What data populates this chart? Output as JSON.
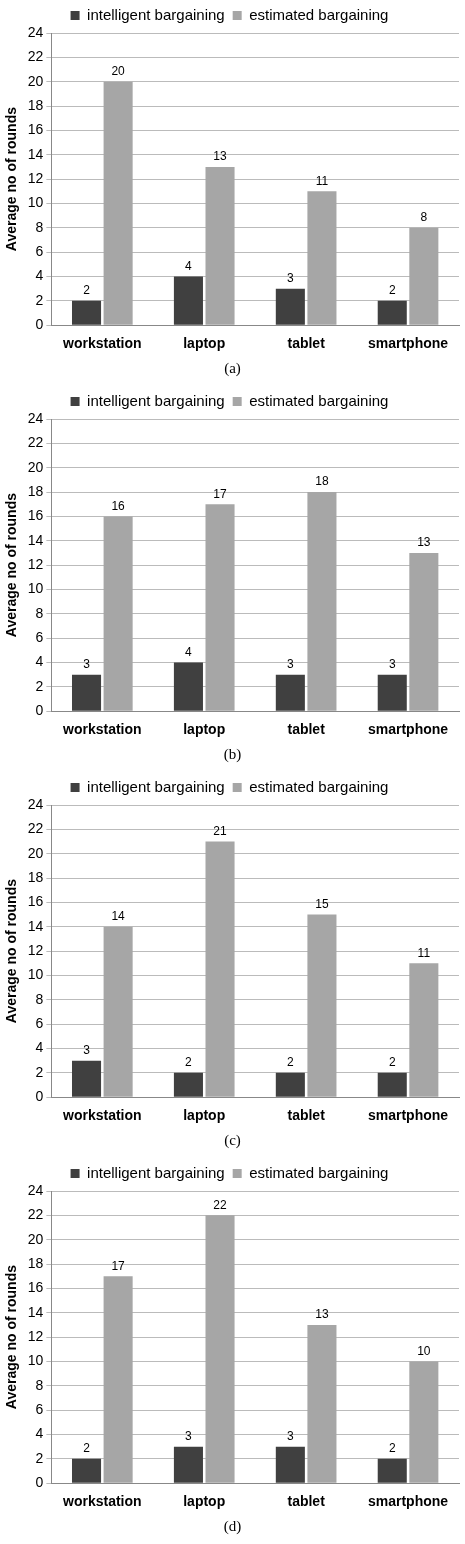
{
  "chart_data": [
    {
      "type": "bar",
      "ylabel": "Average no of rounds",
      "categories": [
        "workstation",
        "laptop",
        "tablet",
        "smartphone"
      ],
      "series": [
        {
          "name": "intelligent bargaining",
          "color": "#404040",
          "values": [
            2,
            4,
            3,
            2
          ]
        },
        {
          "name": "estimated bargaining",
          "color": "#a6a6a6",
          "values": [
            20,
            13,
            11,
            8
          ]
        }
      ],
      "ylim": [
        0,
        24
      ],
      "yticks": [
        0,
        2,
        4,
        6,
        8,
        10,
        12,
        14,
        16,
        18,
        20,
        22,
        24
      ],
      "grid": "y",
      "legend": "top",
      "data_labels": true,
      "annotations": [
        "(a)"
      ]
    },
    {
      "type": "bar",
      "ylabel": "Average no of rounds",
      "categories": [
        "workstation",
        "laptop",
        "tablet",
        "smartphone"
      ],
      "series": [
        {
          "name": "intelligent bargaining",
          "color": "#404040",
          "values": [
            3,
            4,
            3,
            3
          ]
        },
        {
          "name": "estimated bargaining",
          "color": "#a6a6a6",
          "values": [
            16,
            17,
            18,
            13
          ]
        }
      ],
      "ylim": [
        0,
        24
      ],
      "yticks": [
        0,
        2,
        4,
        6,
        8,
        10,
        12,
        14,
        16,
        18,
        20,
        22,
        24
      ],
      "grid": "y",
      "legend": "top",
      "data_labels": true,
      "annotations": [
        "(b)"
      ]
    },
    {
      "type": "bar",
      "ylabel": "Average no of rounds",
      "categories": [
        "workstation",
        "laptop",
        "tablet",
        "smartphone"
      ],
      "series": [
        {
          "name": "intelligent bargaining",
          "color": "#404040",
          "values": [
            3,
            2,
            2,
            2
          ]
        },
        {
          "name": "estimated bargaining",
          "color": "#a6a6a6",
          "values": [
            14,
            21,
            15,
            11
          ]
        }
      ],
      "ylim": [
        0,
        24
      ],
      "yticks": [
        0,
        2,
        4,
        6,
        8,
        10,
        12,
        14,
        16,
        18,
        20,
        22,
        24
      ],
      "grid": "y",
      "legend": "top",
      "data_labels": true,
      "annotations": [
        "(c)"
      ]
    },
    {
      "type": "bar",
      "ylabel": "Average no of rounds",
      "categories": [
        "workstation",
        "laptop",
        "tablet",
        "smartphone"
      ],
      "series": [
        {
          "name": "intelligent bargaining",
          "color": "#404040",
          "values": [
            2,
            3,
            3,
            2
          ]
        },
        {
          "name": "estimated bargaining",
          "color": "#a6a6a6",
          "values": [
            17,
            22,
            13,
            10
          ]
        }
      ],
      "ylim": [
        0,
        24
      ],
      "yticks": [
        0,
        2,
        4,
        6,
        8,
        10,
        12,
        14,
        16,
        18,
        20,
        22,
        24
      ],
      "grid": "y",
      "legend": "top",
      "data_labels": true,
      "annotations": [
        "(d)"
      ]
    }
  ]
}
